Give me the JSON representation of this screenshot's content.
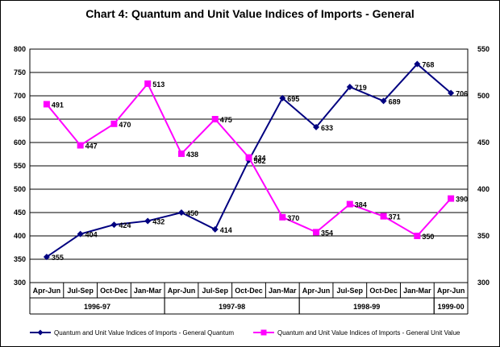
{
  "chart_data": {
    "type": "line",
    "title": "Chart 4: Quantum and Unit Value Indices of Imports - General",
    "categories": [
      "Apr-Jun",
      "Jul-Sep",
      "Oct-Dec",
      "Jan-Mar",
      "Apr-Jun",
      "Jul-Sep",
      "Oct-Dec",
      "Jan-Mar",
      "Apr-Jun",
      "Jul-Sep",
      "Oct-Dec",
      "Jan-Mar",
      "Apr-Jun"
    ],
    "year_groups": [
      {
        "label": "1996-97",
        "span": 4
      },
      {
        "label": "1997-98",
        "span": 4
      },
      {
        "label": "1998-99",
        "span": 4
      },
      {
        "label": "1999-00",
        "span": 1
      }
    ],
    "ylim_left": [
      300,
      800
    ],
    "yticks_left": [
      300,
      350,
      400,
      450,
      500,
      550,
      600,
      650,
      700,
      750,
      800
    ],
    "ylim_right": [
      300,
      550
    ],
    "yticks_right": [
      300,
      350,
      400,
      450,
      500,
      550
    ],
    "grid": true,
    "legend_position": "bottom",
    "series": [
      {
        "name": "Quantum and Unit Value Indices of Imports - General Quantum",
        "axis": "left",
        "color": "#000080",
        "marker": "diamond",
        "values": [
          355,
          404,
          424,
          432,
          450,
          414,
          562,
          695,
          633,
          719,
          689,
          768,
          706
        ]
      },
      {
        "name": "Quantum and Unit Value Indices of Imports - General Unit Value",
        "axis": "right",
        "color": "#FF00FF",
        "marker": "square",
        "values": [
          491,
          447,
          470,
          513,
          438,
          475,
          434,
          370,
          354,
          384,
          371,
          350,
          390
        ]
      }
    ]
  }
}
